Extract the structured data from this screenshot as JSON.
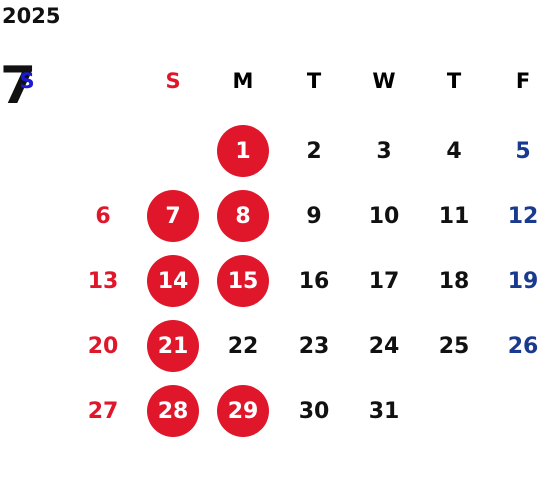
{
  "calendar": {
    "year": "2025",
    "month": "7",
    "weekdays": [
      "S",
      "M",
      "T",
      "W",
      "T",
      "F",
      "S"
    ],
    "weeks": [
      [
        "",
        "",
        "1",
        "2",
        "3",
        "4",
        "5"
      ],
      [
        "6",
        "7",
        "8",
        "9",
        "10",
        "11",
        "12"
      ],
      [
        "13",
        "14",
        "15",
        "16",
        "17",
        "18",
        "19"
      ],
      [
        "20",
        "21",
        "22",
        "23",
        "24",
        "25",
        "26"
      ],
      [
        "27",
        "28",
        "29",
        "30",
        "31",
        "",
        ""
      ]
    ],
    "highlighted_days": [
      "1",
      "7",
      "8",
      "14",
      "15",
      "21",
      "28",
      "29"
    ]
  },
  "colors": {
    "sunday": "#e0162b",
    "saturday": "#1a3a8f",
    "saturday_header": "#1a1ad6",
    "highlight": "#e0162b",
    "text": "#111111"
  }
}
